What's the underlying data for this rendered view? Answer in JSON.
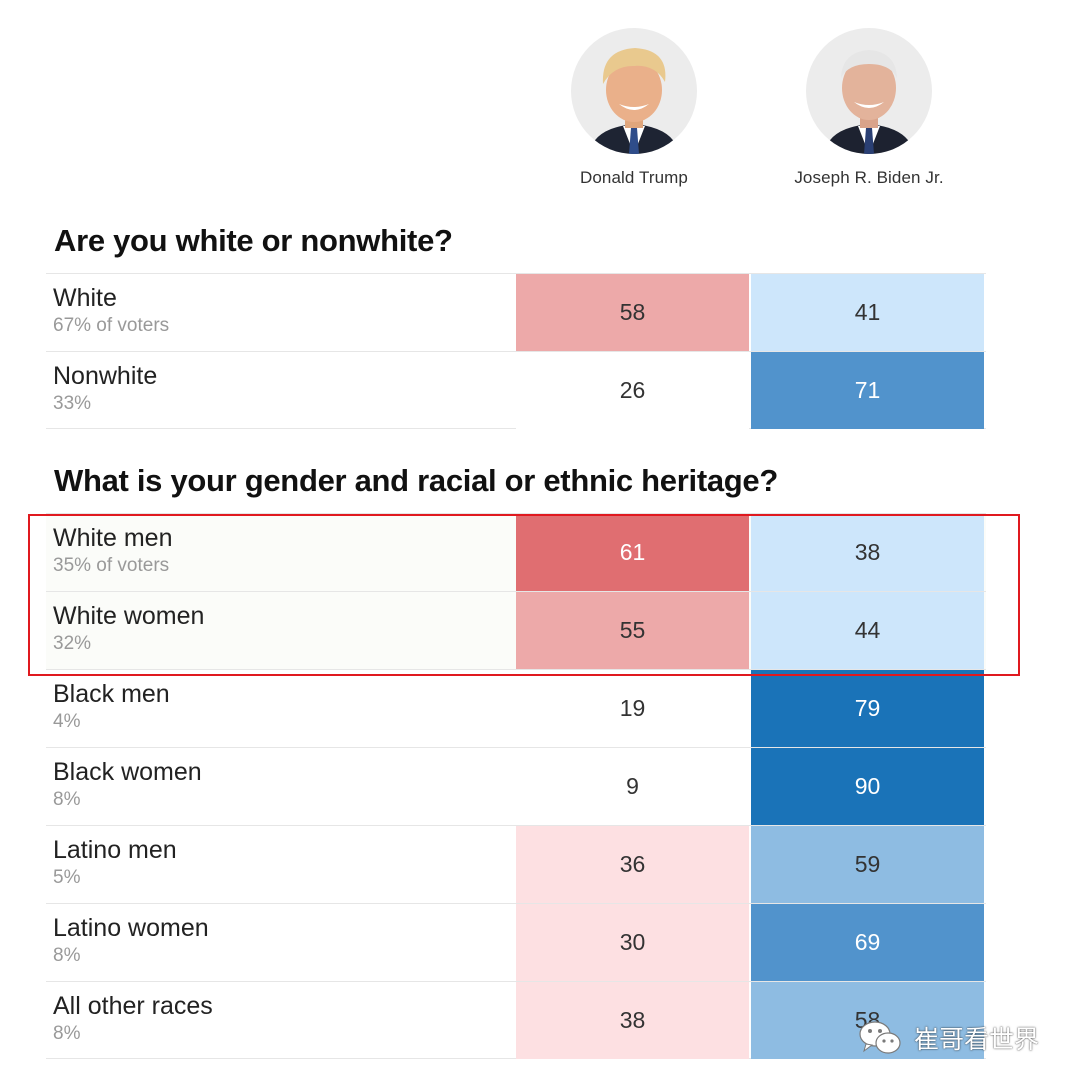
{
  "candidates": [
    {
      "name": "Donald Trump",
      "color": "#c0262d"
    },
    {
      "name": "Joseph R. Biden Jr.",
      "color": "#1a6fb5"
    }
  ],
  "chart_data": [
    {
      "type": "table",
      "title": "Are you white or nonwhite?",
      "columns": [
        "Donald Trump",
        "Joseph R. Biden Jr."
      ],
      "rows": [
        {
          "group": "White",
          "share": "67% of voters",
          "trump": 58,
          "biden": 41
        },
        {
          "group": "Nonwhite",
          "share": "33%",
          "trump": 26,
          "biden": 71
        }
      ]
    },
    {
      "type": "table",
      "title": "What is your gender and racial or ethnic heritage?",
      "columns": [
        "Donald Trump",
        "Joseph R. Biden Jr."
      ],
      "rows": [
        {
          "group": "White men",
          "share": "35% of voters",
          "trump": 61,
          "biden": 38
        },
        {
          "group": "White women",
          "share": "32%",
          "trump": 55,
          "biden": 44
        },
        {
          "group": "Black men",
          "share": "4%",
          "trump": 19,
          "biden": 79
        },
        {
          "group": "Black women",
          "share": "8%",
          "trump": 9,
          "biden": 90
        },
        {
          "group": "Latino men",
          "share": "5%",
          "trump": 36,
          "biden": 59
        },
        {
          "group": "Latino women",
          "share": "8%",
          "trump": 30,
          "biden": 69
        },
        {
          "group": "All other races",
          "share": "8%",
          "trump": 38,
          "biden": 58
        }
      ],
      "highlighted_rows": [
        "White men",
        "White women"
      ]
    }
  ],
  "watermark": {
    "text": "崔哥看世界",
    "icon": "wechat-icon"
  }
}
